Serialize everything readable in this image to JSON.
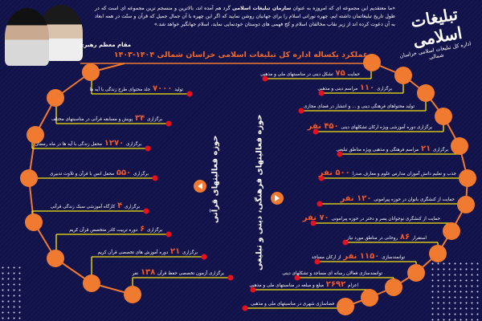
{
  "header": {
    "quote_parts": [
      "«ما معتقدیم این مجموعه ای که امروزه به عنوان ",
      "سازمان تبلیغات اسلامی",
      " گرد هم آمده اند، بالاترین و منسجم ترین مجموعه ای است که در طول تاریخ تبلیغاتمان داشته ایم. چهره نورانی اسلام را برای جهانیان روشن نمایید که اگر این چهره با آن جمال جمیل که قرآن و سنّت در همه ابعاد به آن دعوت کرده اند از زیر نقاب مخالفان اسلام و کج فهمی های دوستان خودنمایی نماید، اسلام جهانگیر خواهد شد.»"
    ],
    "attribution": "مقام معظم رهبری",
    "logo_main": "تبلیغات اسلامی",
    "logo_sub": "اداره کل تبلیغات اسلامی خراسان شمالی",
    "title": "عملکرد یکساله اداره کل تبلیغات اسلامی خراسان شمالی ۱۴۰۴-۱۴۰۳"
  },
  "colors": {
    "background": "#12124a",
    "accent": "#f07a30",
    "number": "#ef5a2b",
    "line": "#f5e60a",
    "dot": "#e8101e"
  },
  "quran": {
    "label": "حوزه فعالیتهای قرآنی",
    "items": [
      {
        "before": "تولید",
        "number": "۷۰۰۰",
        "after": "جلد محتوای طرح زندگی با آیه ها"
      },
      {
        "before": "برگزاری",
        "number": "۳۴",
        "after": "پویش و مسابقه قرآنی در مناسبتهای مختلف"
      },
      {
        "before": "برگزاری",
        "number": "۱۲۷۰",
        "after": "محفل زندگی با آیه ها در ماه رمضان"
      },
      {
        "before": "برگزاری",
        "number": "۵۵۰",
        "after": "محفل انس با قرآن و تلاوت تدبیری"
      },
      {
        "before": "برگزاری",
        "number": "۴",
        "after": "کارگاه آموزشی سبک زندگی قرآنی"
      },
      {
        "before": "برگزاری",
        "number": "۶",
        "after": "دوره تربیت کادر متخصص قرآن کریم"
      },
      {
        "before": "برگزاری",
        "number": "۲۱",
        "after": "دوره آموزش های تخصصی قرآن کریم"
      },
      {
        "before": "برگزاری آزمون تخصصی حفظ قرآن",
        "number": "۱۳۸",
        "after": "نفر"
      }
    ]
  },
  "cultural": {
    "label": "حوزه فعالیتهای فرهنگی، دینی و تبلیغی",
    "items": [
      {
        "before": "حمایت",
        "number": "۷۵",
        "after": "تشکل دینی در مناسبتهای ملی و مذهبی"
      },
      {
        "before": "برگزاری",
        "number": "۱۱۰",
        "after": "مراسم دینی و مذهبی"
      },
      {
        "before": "تولید محتواهای فرهنگی دینی و ... و انتشار در فضای مجازی",
        "number": "",
        "after": ""
      },
      {
        "before": "برگزاری دوره آموزشی ویژه ارکان تشکلهای دینی",
        "number": "۴۵۰ نفر",
        "after": ""
      },
      {
        "before": "برگزاری",
        "number": "۲۱",
        "after": "مراسم فرهنگی و مذهبی ویژه مناطق تبلیغی"
      },
      {
        "before": "جذب و تعلیم دانش آموزان مدارس علوم و معارف صدرا",
        "number": "۵۰۰ نفر",
        "after": ""
      },
      {
        "before": "حمایت از کنشگری بانوان در حوزه پیرامونی",
        "number": "۱۲۰ نفر",
        "after": ""
      },
      {
        "before": "حمایت از کنشگری نوجوانان پسر و دختر در حوزه پیرامونی",
        "number": "۷۰ نفر",
        "after": ""
      },
      {
        "before": "استقرار",
        "number": "۸۶",
        "after": "روحانی در مناطق مورد نیاز"
      },
      {
        "before": "توانمندسازی",
        "number": "۱۱۵۰ نفر",
        "after": "از ارکان مساجد"
      },
      {
        "before": "توانمندسازی فعالان رسانه ای مساجد و تشکلهای دینی",
        "number": "",
        "after": ""
      },
      {
        "before": "اعزام",
        "number": "۲۶۹۲",
        "after": "مبلغ و مبلغه در مناسبتهای ملی و مذهبی"
      },
      {
        "before": "فضاسازی شهری در مناسبتهای ملی و مذهبی",
        "number": "",
        "after": ""
      }
    ]
  }
}
